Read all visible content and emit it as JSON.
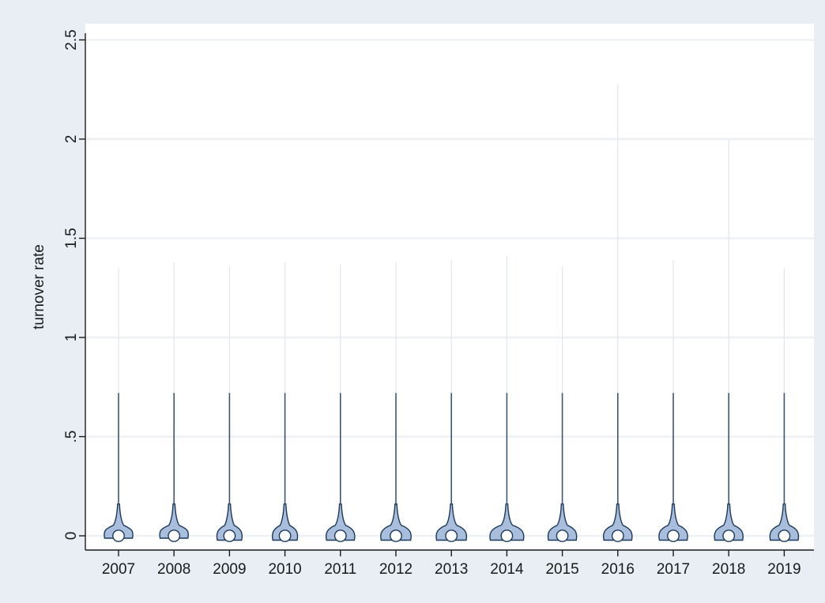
{
  "chart_data": {
    "type": "violin",
    "title": "",
    "xlabel": "",
    "ylabel": "turnover rate",
    "ylim": [
      -0.03,
      2.58
    ],
    "yticks": [
      0,
      0.5,
      1,
      1.5,
      2,
      2.5
    ],
    "ytick_labels": [
      "0",
      ".5",
      "1",
      "1.5",
      "2",
      "2.5"
    ],
    "grid": true,
    "colors": {
      "background": "#e8eef4",
      "plot_area": "#ffffff",
      "gridline": "#edf1f5",
      "violin_fill": "#a9bedc",
      "violin_stroke": "#1b3a5c",
      "median_marker": "#ffffff"
    },
    "categories": [
      "2007",
      "2008",
      "2009",
      "2010",
      "2011",
      "2012",
      "2013",
      "2014",
      "2015",
      "2016",
      "2017",
      "2018",
      "2019"
    ],
    "series": [
      {
        "category": "2007",
        "median": 0.0,
        "max": 1.35,
        "body_halfwidth": 0.8,
        "base": 0.0
      },
      {
        "category": "2008",
        "median": 0.0,
        "max": 1.38,
        "body_halfwidth": 0.8,
        "base": 0.0
      },
      {
        "category": "2009",
        "median": 0.0,
        "max": 1.36,
        "body_halfwidth": 0.7,
        "base": -0.01
      },
      {
        "category": "2010",
        "median": 0.0,
        "max": 1.38,
        "body_halfwidth": 0.7,
        "base": -0.01
      },
      {
        "category": "2011",
        "median": 0.0,
        "max": 1.37,
        "body_halfwidth": 0.8,
        "base": -0.01
      },
      {
        "category": "2012",
        "median": 0.0,
        "max": 1.38,
        "body_halfwidth": 0.85,
        "base": -0.01
      },
      {
        "category": "2013",
        "median": 0.0,
        "max": 1.39,
        "body_halfwidth": 0.85,
        "base": -0.01
      },
      {
        "category": "2014",
        "median": 0.0,
        "max": 1.41,
        "body_halfwidth": 0.95,
        "base": -0.01
      },
      {
        "category": "2015",
        "median": 0.0,
        "max": 1.36,
        "body_halfwidth": 0.8,
        "base": -0.01
      },
      {
        "category": "2016",
        "median": 0.0,
        "max": 2.28,
        "body_halfwidth": 0.8,
        "base": -0.01
      },
      {
        "category": "2017",
        "median": 0.0,
        "max": 1.39,
        "body_halfwidth": 0.8,
        "base": -0.01
      },
      {
        "category": "2018",
        "median": 0.0,
        "max": 2.0,
        "body_halfwidth": 0.8,
        "base": -0.01
      },
      {
        "category": "2019",
        "median": 0.0,
        "max": 1.35,
        "body_halfwidth": 0.8,
        "base": -0.01
      }
    ]
  }
}
